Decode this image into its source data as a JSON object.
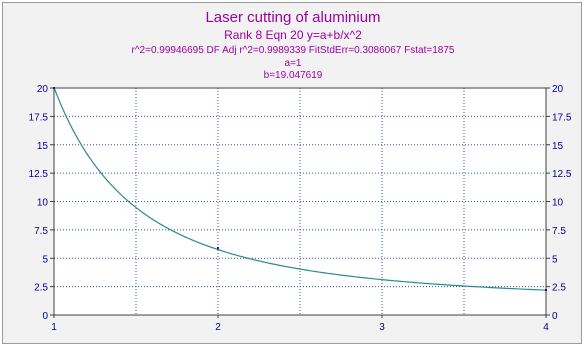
{
  "header": {
    "title": "Laser cutting of aluminium",
    "rank_line": "Rank 8  Eqn 20  y=a+b/x^2",
    "stats_line": "r^2=0.99946695  DF Adj r^2=0.9989339  FitStdErr=0.3086067  Fstat=1875",
    "param_a": "a=1",
    "param_b": "b=19.047619"
  },
  "chart_data": {
    "type": "line",
    "title": "Laser cutting of aluminium",
    "xlabel": "",
    "ylabel": "",
    "xlim": [
      1,
      4
    ],
    "ylim": [
      0,
      20
    ],
    "x_ticks": [
      1,
      2,
      3,
      4
    ],
    "y_ticks": [
      0,
      2.5,
      5,
      7.5,
      10,
      12.5,
      15,
      17.5,
      20
    ],
    "y_tick_labels": [
      "0",
      "2.5",
      "5",
      "7.5",
      "10",
      "12.5",
      "15",
      "17.5",
      "20"
    ],
    "grid": "dotted",
    "fit": {
      "equation": "y=a+b/x^2",
      "a": 1,
      "b": 19.047619
    },
    "points": [
      {
        "x": 1,
        "y": 20
      },
      {
        "x": 2,
        "y": 5.9
      },
      {
        "x": 4,
        "y": 2.2
      }
    ],
    "colors": {
      "curve": "#2a8a8a",
      "point": "#1a1a80",
      "axis_text": "#0000a0",
      "grid": "#3050b0",
      "title": "#a000a0"
    }
  }
}
